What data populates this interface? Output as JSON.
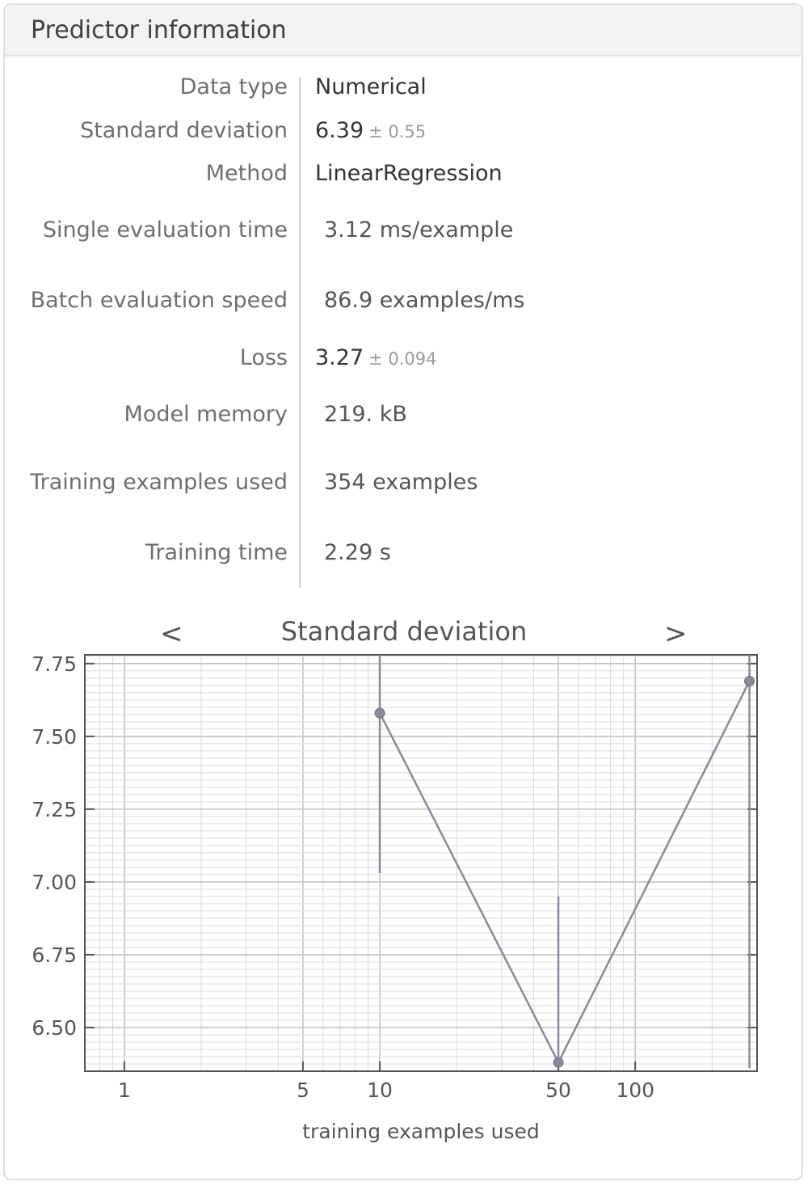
{
  "panel": {
    "title": "Predictor information"
  },
  "rows": [
    {
      "label": "Data type",
      "value": "Numerical"
    },
    {
      "label": "Standard deviation",
      "value": "6.39",
      "error": "± 0.55"
    },
    {
      "label": "Method",
      "value": "LinearRegression"
    },
    {
      "label": "Single evaluation time",
      "value": "3.12 ms/example"
    },
    {
      "label": "Batch evaluation speed",
      "value": "86.9 examples/ms"
    },
    {
      "label": "Loss",
      "value": "3.27",
      "error": "± 0.094"
    },
    {
      "label": "Model memory",
      "value": "219. kB"
    },
    {
      "label": "Training examples used",
      "value": "354 examples"
    },
    {
      "label": "Training time",
      "value": "2.29 s"
    }
  ],
  "nav": {
    "prev": "<",
    "next": ">"
  },
  "chart_data": {
    "type": "scatter",
    "title": "Standard deviation",
    "xlabel": "training examples used",
    "ylabel": "",
    "x_scale": "log",
    "xlim": [
      0.7,
      300
    ],
    "ylim": [
      6.35,
      7.78
    ],
    "x_ticks": [
      "1",
      "5",
      "10",
      "50",
      "100"
    ],
    "y_ticks": [
      "7.75",
      "7.50",
      "7.25",
      "7.00",
      "6.75",
      "6.50"
    ],
    "grid": true,
    "points": [
      {
        "x": 10,
        "y": 7.58,
        "err_low": 7.03,
        "err_high": 7.78
      },
      {
        "x": 50,
        "y": 6.38,
        "err_low": 6.38,
        "err_high": 6.95
      },
      {
        "x": 280,
        "y": 7.69,
        "err_low": 6.36,
        "err_high": 7.78
      }
    ],
    "color": "#8a8a98"
  }
}
